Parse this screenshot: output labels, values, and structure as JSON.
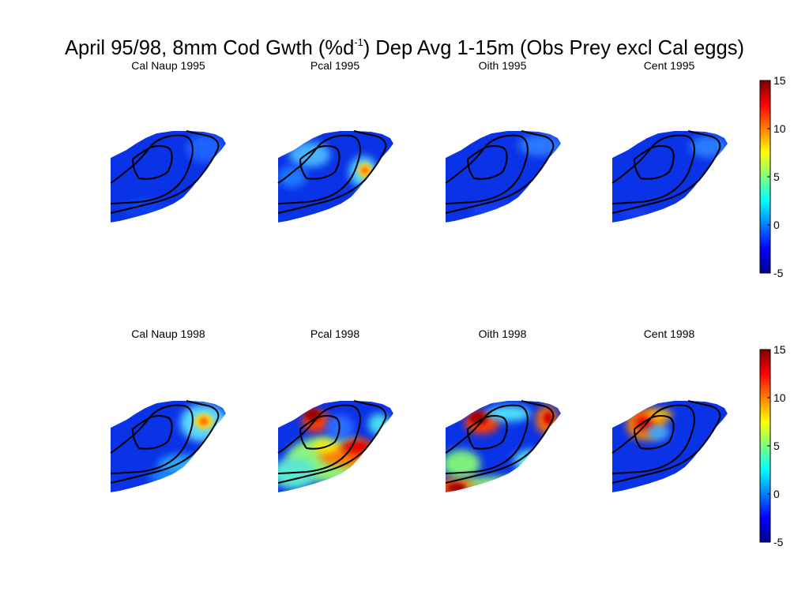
{
  "figure": {
    "title_main": "April 95/98, 8mm Cod Gwth (%d",
    "title_sup": "-1",
    "title_rest": ") Dep Avg 1-15m (Obs Prey excl Cal eggs)"
  },
  "chart_data": {
    "type": "heatmap",
    "colormap": "jet",
    "clim": [
      -5,
      15
    ],
    "colorbar_ticks": [
      "15",
      "10",
      "5",
      "0",
      "-5"
    ],
    "panels": [
      {
        "title": "Cal Naup 1995",
        "prey": "Cal Naup",
        "year": "1995"
      },
      {
        "title": "Pcal 1995",
        "prey": "Pcal",
        "year": "1995"
      },
      {
        "title": "Oith 1995",
        "prey": "Oith",
        "year": "1995"
      },
      {
        "title": "Cent 1995",
        "prey": "Cent",
        "year": "1995"
      },
      {
        "title": "Cal Naup 1998",
        "prey": "Cal Naup",
        "year": "1998"
      },
      {
        "title": "Pcal 1998",
        "prey": "Pcal",
        "year": "1998"
      },
      {
        "title": "Oith 1998",
        "prey": "Oith",
        "year": "1998"
      },
      {
        "title": "Cent 1998",
        "prey": "Cent",
        "year": "1998"
      }
    ]
  }
}
